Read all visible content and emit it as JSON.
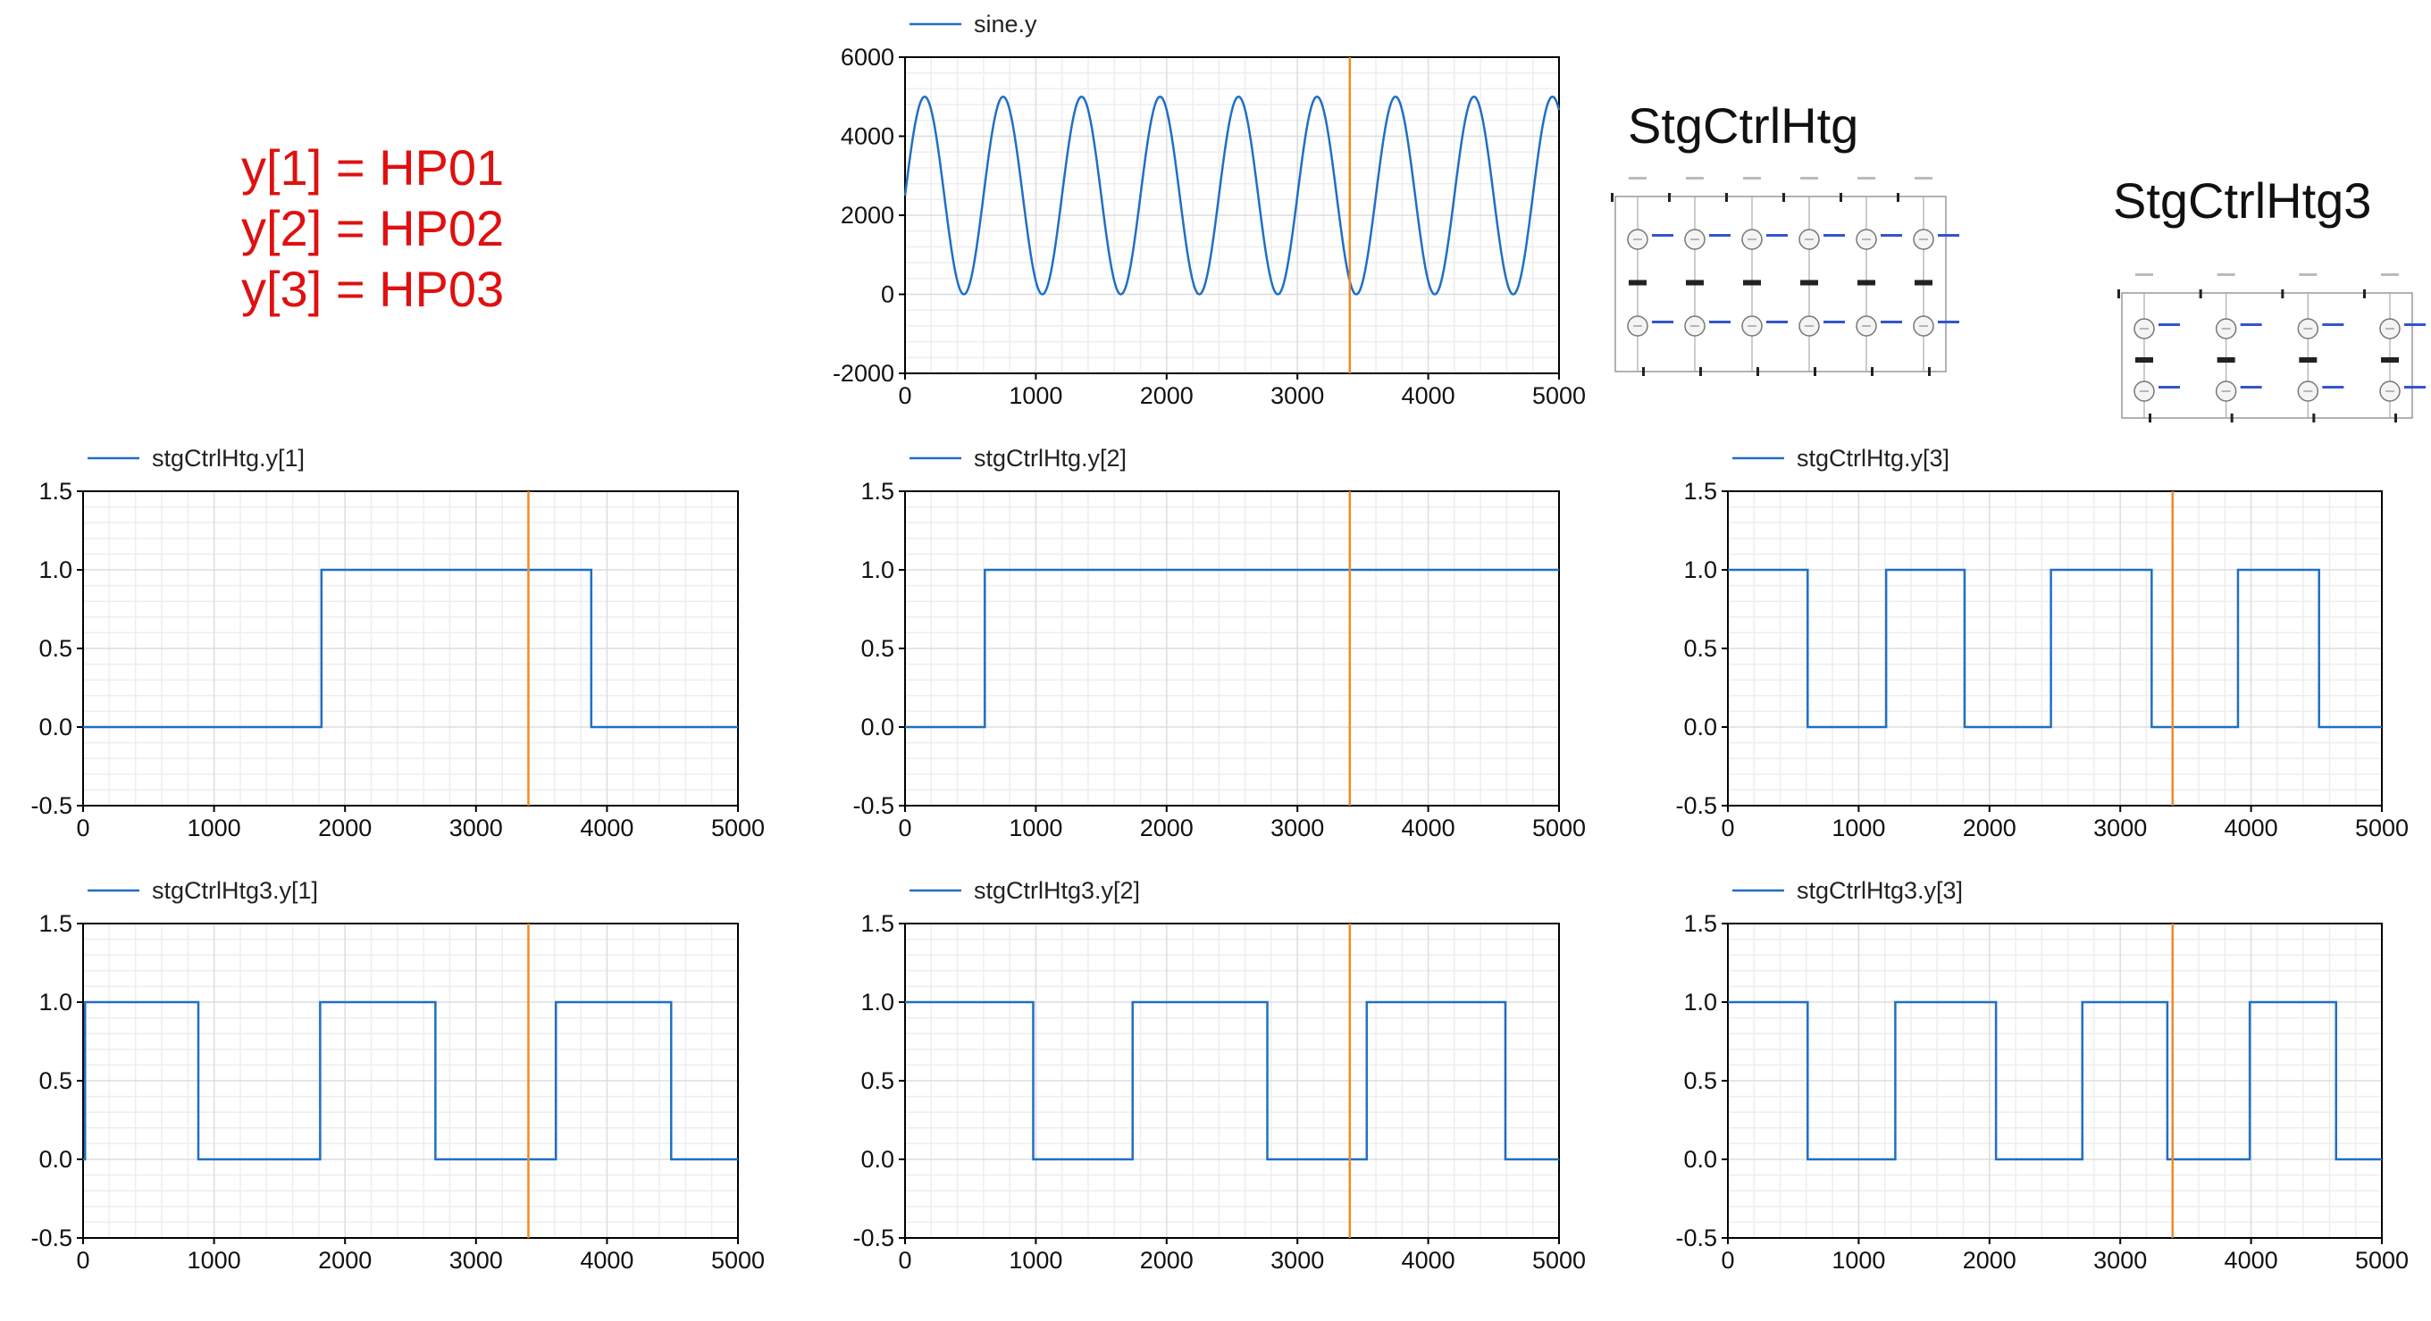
{
  "annotations": {
    "mapping": [
      "y[1] = HP01",
      "y[2] = HP02",
      "y[3] = HP03"
    ]
  },
  "diagrams": [
    {
      "title": "StgCtrlHtg",
      "icon": "state-graph-diagram-icon"
    },
    {
      "title": "StgCtrlHtg3",
      "icon": "state-graph-diagram-icon"
    }
  ],
  "colors": {
    "series": "#1f6fc5",
    "cursor": "#f08a24",
    "grid": "#dddddd",
    "axis": "#000000",
    "annotation": "#e01010"
  },
  "chart_data": [
    {
      "id": "sine",
      "type": "line",
      "legend": "sine.y",
      "xlim": [
        0,
        5000
      ],
      "ylim": [
        -2000,
        6000
      ],
      "xticks": [
        0,
        1000,
        2000,
        3000,
        4000,
        5000
      ],
      "yticks": [
        -2000,
        0,
        2000,
        4000,
        6000
      ],
      "ytick_labels": [
        "-2000",
        "0",
        "2000",
        "4000",
        "6000"
      ],
      "series": [
        {
          "function": "sine",
          "amplitude": 2500,
          "offset": 2500,
          "period": 600,
          "phase_x": 0
        }
      ],
      "cursor_x": 3400,
      "grid": true
    },
    {
      "id": "stg1",
      "type": "line",
      "legend": "stgCtrlHtg.y[1]",
      "xlim": [
        0,
        5000
      ],
      "ylim": [
        -0.5,
        1.5
      ],
      "xticks": [
        0,
        1000,
        2000,
        3000,
        4000,
        5000
      ],
      "yticks": [
        -0.5,
        0,
        0.5,
        1,
        1.5
      ],
      "ytick_labels": [
        "-0.5",
        "0.0",
        "0.5",
        "1.0",
        "1.5"
      ],
      "series": [
        {
          "step_changes": [
            [
              0,
              0
            ],
            [
              1820,
              1
            ],
            [
              3880,
              0
            ]
          ]
        }
      ],
      "cursor_x": 3400,
      "grid": true
    },
    {
      "id": "stg2",
      "type": "line",
      "legend": "stgCtrlHtg.y[2]",
      "xlim": [
        0,
        5000
      ],
      "ylim": [
        -0.5,
        1.5
      ],
      "xticks": [
        0,
        1000,
        2000,
        3000,
        4000,
        5000
      ],
      "yticks": [
        -0.5,
        0,
        0.5,
        1,
        1.5
      ],
      "ytick_labels": [
        "-0.5",
        "0.0",
        "0.5",
        "1.0",
        "1.5"
      ],
      "series": [
        {
          "step_changes": [
            [
              0,
              0
            ],
            [
              610,
              1
            ]
          ]
        }
      ],
      "cursor_x": 3400,
      "grid": true
    },
    {
      "id": "stg3",
      "type": "line",
      "legend": "stgCtrlHtg.y[3]",
      "xlim": [
        0,
        5000
      ],
      "ylim": [
        -0.5,
        1.5
      ],
      "xticks": [
        0,
        1000,
        2000,
        3000,
        4000,
        5000
      ],
      "yticks": [
        -0.5,
        0,
        0.5,
        1,
        1.5
      ],
      "ytick_labels": [
        "-0.5",
        "0.0",
        "0.5",
        "1.0",
        "1.5"
      ],
      "series": [
        {
          "step_changes": [
            [
              0,
              1
            ],
            [
              610,
              0
            ],
            [
              1210,
              1
            ],
            [
              1810,
              0
            ],
            [
              2470,
              1
            ],
            [
              3240,
              0
            ],
            [
              3900,
              1
            ],
            [
              4520,
              0
            ]
          ]
        }
      ],
      "cursor_x": 3400,
      "grid": true
    },
    {
      "id": "stg3_1",
      "type": "line",
      "legend": "stgCtrlHtg3.y[1]",
      "xlim": [
        0,
        5000
      ],
      "ylim": [
        -0.5,
        1.5
      ],
      "xticks": [
        0,
        1000,
        2000,
        3000,
        4000,
        5000
      ],
      "yticks": [
        -0.5,
        0,
        0.5,
        1,
        1.5
      ],
      "ytick_labels": [
        "-0.5",
        "0.0",
        "0.5",
        "1.0",
        "1.5"
      ],
      "series": [
        {
          "step_changes": [
            [
              0,
              0
            ],
            [
              15,
              1
            ],
            [
              880,
              0
            ],
            [
              1810,
              1
            ],
            [
              2690,
              0
            ],
            [
              3610,
              1
            ],
            [
              4490,
              0
            ]
          ]
        }
      ],
      "cursor_x": 3400,
      "grid": true
    },
    {
      "id": "stg3_2",
      "type": "line",
      "legend": "stgCtrlHtg3.y[2]",
      "xlim": [
        0,
        5000
      ],
      "ylim": [
        -0.5,
        1.5
      ],
      "xticks": [
        0,
        1000,
        2000,
        3000,
        4000,
        5000
      ],
      "yticks": [
        -0.5,
        0,
        0.5,
        1,
        1.5
      ],
      "ytick_labels": [
        "-0.5",
        "0.0",
        "0.5",
        "1.0",
        "1.5"
      ],
      "series": [
        {
          "step_changes": [
            [
              0,
              1
            ],
            [
              980,
              0
            ],
            [
              1740,
              1
            ],
            [
              2770,
              0
            ],
            [
              3530,
              1
            ],
            [
              4590,
              0
            ]
          ]
        }
      ],
      "cursor_x": 3400,
      "grid": true
    },
    {
      "id": "stg3_3",
      "type": "line",
      "legend": "stgCtrlHtg3.y[3]",
      "xlim": [
        0,
        5000
      ],
      "ylim": [
        -0.5,
        1.5
      ],
      "xticks": [
        0,
        1000,
        2000,
        3000,
        4000,
        5000
      ],
      "yticks": [
        -0.5,
        0,
        0.5,
        1,
        1.5
      ],
      "ytick_labels": [
        "-0.5",
        "0.0",
        "0.5",
        "1.0",
        "1.5"
      ],
      "series": [
        {
          "step_changes": [
            [
              0,
              1
            ],
            [
              610,
              0
            ],
            [
              1280,
              1
            ],
            [
              2050,
              0
            ],
            [
              2710,
              1
            ],
            [
              3360,
              0
            ],
            [
              3990,
              1
            ],
            [
              4650,
              0
            ]
          ]
        }
      ],
      "cursor_x": 3400,
      "grid": true
    }
  ]
}
